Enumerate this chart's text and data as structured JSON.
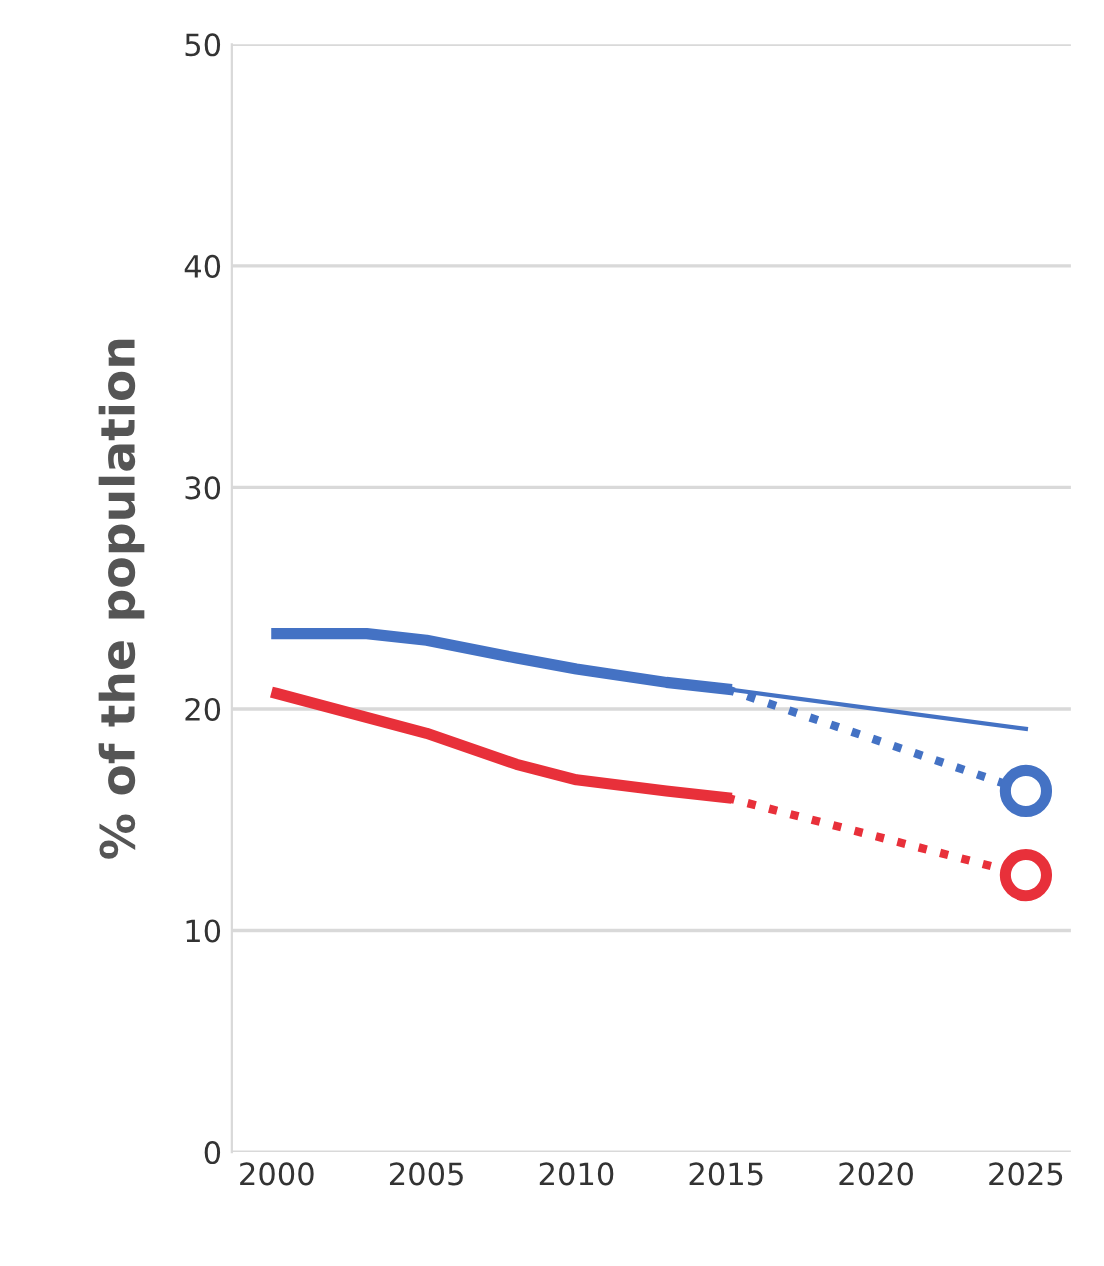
{
  "chart_data": {
    "type": "line",
    "ylabel": "% of the population",
    "xlim": [
      1998.5,
      2026.5
    ],
    "ylim": [
      0,
      50
    ],
    "xticks": [
      2000,
      2005,
      2010,
      2015,
      2020,
      2025
    ],
    "yticks": [
      0,
      10,
      20,
      30,
      40,
      50
    ],
    "grid": "y",
    "series": [
      {
        "color": "#4472c4",
        "x": [
          2000,
          2003,
          2005,
          2008,
          2010,
          2013,
          2015
        ],
        "values": [
          23.4,
          23.4,
          23.1,
          22.3,
          21.8,
          21.2,
          20.9
        ],
        "line_style": "solid"
      },
      {
        "color": "#4472c4",
        "x": [
          2015,
          2025
        ],
        "values": [
          20.9,
          19.1
        ],
        "line_style": "solid"
      },
      {
        "color": "#4472c4",
        "x": [
          2015,
          2025
        ],
        "values": [
          20.9,
          16.3
        ],
        "line_style": "dotted"
      },
      {
        "color": "#e8303a",
        "x": [
          2000,
          2005,
          2008,
          2010,
          2013,
          2015
        ],
        "values": [
          20.7,
          18.9,
          17.5,
          16.8,
          16.3,
          16.0
        ],
        "line_style": "solid"
      },
      {
        "color": "#e8303a",
        "x": [
          2015,
          2025
        ],
        "values": [
          16.0,
          12.5
        ],
        "line_style": "dotted"
      },
      {
        "type": "scatter",
        "marker": "circle",
        "color": "#4472c4",
        "x": [
          2025
        ],
        "values": [
          16.3
        ]
      },
      {
        "type": "scatter",
        "marker": "circle",
        "color": "#e8303a",
        "x": [
          2025
        ],
        "values": [
          12.5
        ]
      }
    ]
  }
}
